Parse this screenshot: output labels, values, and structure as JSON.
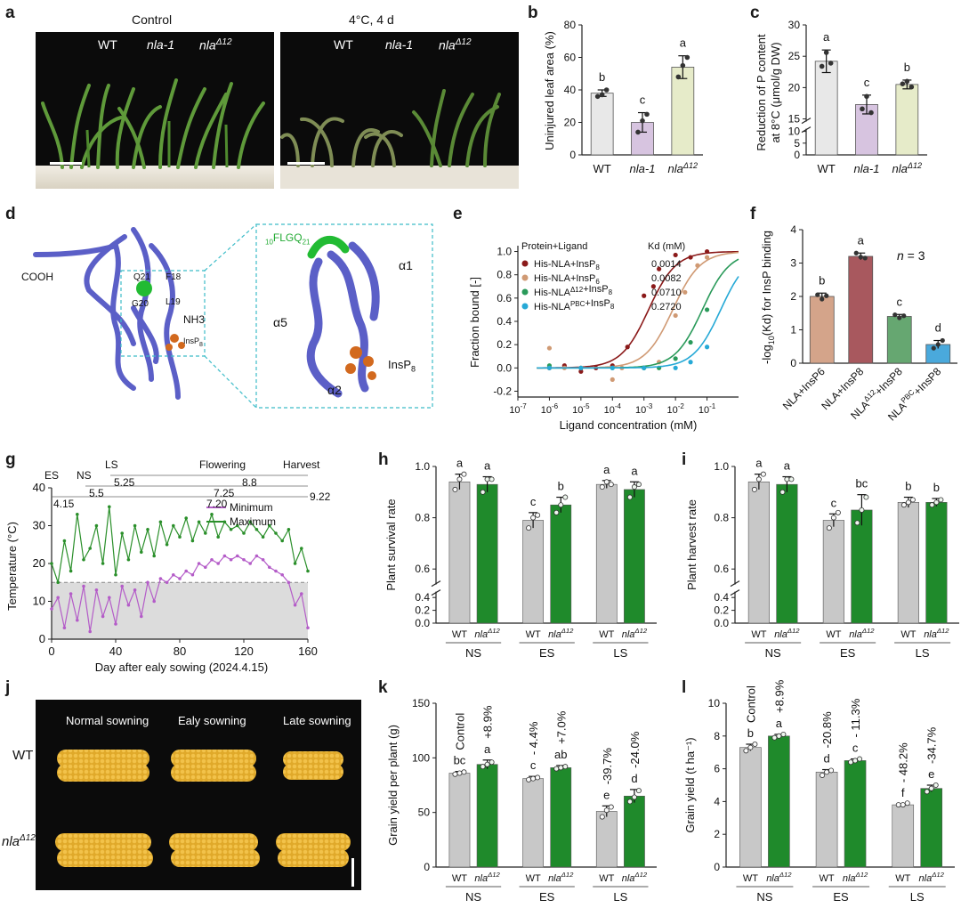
{
  "letters": {
    "a": "a",
    "b": "b",
    "c": "c",
    "d": "d",
    "e": "e",
    "f": "f",
    "g": "g",
    "h": "h",
    "i": "i",
    "j": "j",
    "k": "k",
    "l": "l"
  },
  "panel_a": {
    "control_title": "Control",
    "cold_title": "4°C, 4 d",
    "label_wt": "WT",
    "label_nla1": "nla-1",
    "label_nla12_base": "nla",
    "label_nla12_sup": "Δ12"
  },
  "panel_d": {
    "cooh": "COOH",
    "q21": "Q21",
    "f18": "F18",
    "g20": "G20",
    "l19": "L19",
    "nh3": "NH3",
    "insp_small": "InsP",
    "insp_small_sub": "8",
    "motif_pre": "10",
    "motif": "FLGQ",
    "motif_post": "21",
    "a1": "α1",
    "a2": "α2",
    "a5": "α5",
    "insp8": "InsP",
    "insp8_sub": "8"
  },
  "panel_j": {
    "normal": "Normal sowning",
    "early": "Ealy sowning",
    "late": "Late sowning",
    "wt": "WT",
    "nla_base": "nla",
    "nla_sup": "Δ12"
  },
  "chart_data": [
    {
      "panel": "b",
      "type": "bar",
      "ylabel": "Uninjured leaf area (%)",
      "categories": [
        "WT",
        "nla-1",
        "nla^Δ12"
      ],
      "values": [
        38,
        20,
        54
      ],
      "errors": [
        2,
        6,
        7
      ],
      "points": [
        [
          36,
          37,
          40
        ],
        [
          14,
          21,
          25
        ],
        [
          48,
          55,
          60
        ]
      ],
      "letters": [
        "b",
        "c",
        "a"
      ],
      "colors": [
        "#e8e8e8",
        "#d7c4e0",
        "#e6ebc9"
      ],
      "ylim": [
        0,
        80
      ],
      "yticks": [
        0,
        20,
        40,
        60,
        80
      ]
    },
    {
      "panel": "c",
      "type": "bar",
      "ylabel": "Reduction of P content at 8°C (μmol/g DW)",
      "categories": [
        "WT",
        "nla-1",
        "nla^Δ12"
      ],
      "values": [
        24.2,
        17.3,
        20.5
      ],
      "errors": [
        1.8,
        1.5,
        0.7
      ],
      "points": [
        [
          23.4,
          25.6,
          23.9
        ],
        [
          16.6,
          18.6,
          16.0
        ],
        [
          20.6,
          21.0,
          20.1
        ]
      ],
      "letters": [
        "a",
        "c",
        "b"
      ],
      "colors": [
        "#e8e8e8",
        "#d7c4e0",
        "#e6ebc9"
      ],
      "yticks": [
        0,
        5,
        10,
        15,
        20,
        25,
        30
      ],
      "axis_break": [
        10,
        15
      ]
    },
    {
      "panel": "e",
      "type": "scatter",
      "title": "Protein+Ligand",
      "kd_header": "Kd (mM)",
      "xlabel": "Ligand concentration (mM)",
      "ylabel": "Fraction bound [-]",
      "xscale": "log",
      "xlim": [
        1e-07,
        1
      ],
      "xticks": [
        "10^-7",
        "10^-6",
        "10^-5",
        "10^-4",
        "10^-3",
        "10^-2",
        "10^-1"
      ],
      "ylim": [
        -0.25,
        1.05
      ],
      "yticks": [
        -0.2,
        0.0,
        0.2,
        0.4,
        0.6,
        0.8,
        1.0
      ],
      "series": [
        {
          "name": "His-NLA+InsP8",
          "kd": "0.0014",
          "kd_value": 0.0014,
          "color": "#8b1a1a",
          "x": [
            1e-06,
            3e-06,
            1e-05,
            3e-05,
            0.0001,
            0.0003,
            0.001,
            0.002,
            0.003,
            0.01,
            0.03,
            0.1
          ],
          "y": [
            0.0,
            0.02,
            -0.03,
            0.0,
            0.02,
            0.18,
            0.62,
            0.7,
            0.85,
            0.97,
            0.95,
            1.0
          ]
        },
        {
          "name": "His-NLA+InsP6",
          "kd": "0.0082",
          "kd_value": 0.0082,
          "color": "#d09a74",
          "x": [
            1e-06,
            3e-06,
            1e-05,
            0.0001,
            0.0002,
            0.001,
            0.003,
            0.01,
            0.02,
            0.05,
            0.1
          ],
          "y": [
            0.17,
            0.0,
            0.0,
            -0.1,
            0.0,
            0.0,
            0.05,
            0.45,
            0.65,
            0.88,
            0.95
          ]
        },
        {
          "name": "His-NLAΔ12+InsP8",
          "kd": "0.0710",
          "kd_value": 0.071,
          "color": "#2a9a5a",
          "x": [
            1e-06,
            1e-05,
            0.0001,
            0.001,
            0.003,
            0.01,
            0.03,
            0.1
          ],
          "y": [
            0.02,
            0.0,
            0.0,
            0.0,
            0.0,
            0.08,
            0.22,
            0.5
          ]
        },
        {
          "name": "His-NLAPBC+InsP8",
          "kd": "0.2720",
          "kd_value": 0.272,
          "color": "#26a9d6",
          "x": [
            1e-06,
            1e-05,
            0.0001,
            0.001,
            0.01,
            0.03,
            0.1
          ],
          "y": [
            0.0,
            0.0,
            0.0,
            0.0,
            0.0,
            0.05,
            0.18
          ]
        }
      ]
    },
    {
      "panel": "f",
      "type": "bar",
      "ylabel": "-log10(Kd) for InsP binding",
      "annotation": "n = 3",
      "categories": [
        "NLA+InsP6",
        "NLA+InsP8",
        "NLA^Δ12+InsP8",
        "NLA^PBC+InsP8"
      ],
      "values": [
        2.0,
        3.2,
        1.4,
        0.56
      ],
      "errors": [
        0.1,
        0.1,
        0.06,
        0.12
      ],
      "points": [
        [
          2.05,
          1.92,
          2.02
        ],
        [
          3.3,
          3.18,
          3.15
        ],
        [
          1.45,
          1.36,
          1.42
        ],
        [
          0.45,
          0.56,
          0.68
        ]
      ],
      "letters": [
        "b",
        "a",
        "c",
        "d"
      ],
      "colors": [
        "#d4a48a",
        "#a8585e",
        "#66a771",
        "#4aa9dc"
      ],
      "ylim": [
        0,
        4
      ],
      "yticks": [
        0,
        1,
        2,
        3,
        4
      ]
    },
    {
      "panel": "g",
      "type": "line",
      "xlabel": "Day after ealy sowing (2024.4.15)",
      "ylabel": "Temperature (°C)",
      "xlim": [
        0,
        160
      ],
      "xticks": [
        0,
        40,
        80,
        120,
        160
      ],
      "ylim": [
        0,
        40
      ],
      "yticks": [
        0,
        10,
        20,
        30,
        40
      ],
      "threshold": 15,
      "stages": {
        "es": "ES",
        "ns": "NS",
        "ls": "LS",
        "flowering": "Flowering",
        "harvest": "Harvest"
      },
      "stage_dates": [
        "4.15",
        "5.5",
        "5.25",
        "7.20",
        "7.25",
        "8.8",
        "9.22"
      ],
      "series": [
        {
          "name": "Minimum",
          "color": "#b45cc8",
          "x": [
            0,
            4,
            8,
            12,
            16,
            20,
            24,
            28,
            32,
            36,
            40,
            44,
            48,
            52,
            56,
            60,
            64,
            68,
            72,
            76,
            80,
            84,
            88,
            92,
            96,
            100,
            104,
            108,
            112,
            116,
            120,
            124,
            128,
            132,
            136,
            140,
            144,
            148,
            152,
            156,
            160
          ],
          "y": [
            8,
            11,
            3,
            12,
            5,
            14,
            2,
            13,
            6,
            11,
            4,
            14,
            9,
            13,
            6,
            15,
            10,
            16,
            15,
            17,
            16,
            18,
            17,
            20,
            19,
            21,
            20,
            22,
            21,
            22,
            21,
            20,
            22,
            21,
            19,
            18,
            17,
            15,
            9,
            12,
            3
          ]
        },
        {
          "name": "Maximum",
          "color": "#2a8f2a",
          "x": [
            0,
            4,
            8,
            12,
            16,
            20,
            24,
            28,
            32,
            36,
            40,
            44,
            48,
            52,
            56,
            60,
            64,
            68,
            72,
            76,
            80,
            84,
            88,
            92,
            96,
            100,
            104,
            108,
            112,
            116,
            120,
            124,
            128,
            132,
            136,
            140,
            144,
            148,
            152,
            156,
            160
          ],
          "y": [
            20,
            15,
            26,
            18,
            33,
            21,
            24,
            30,
            20,
            35,
            17,
            28,
            21,
            30,
            23,
            29,
            22,
            31,
            25,
            30,
            27,
            32,
            26,
            31,
            28,
            33,
            27,
            31,
            29,
            30,
            28,
            31,
            29,
            27,
            30,
            28,
            26,
            29,
            20,
            24,
            18
          ]
        }
      ]
    },
    {
      "panel": "h",
      "type": "bar",
      "ylabel": "Plant survival rate",
      "groups": [
        "NS",
        "ES",
        "LS"
      ],
      "categories": [
        "WT",
        "nla^Δ12"
      ],
      "values": [
        [
          0.94,
          0.93
        ],
        [
          0.79,
          0.85
        ],
        [
          0.93,
          0.91
        ]
      ],
      "errors": [
        [
          0.03,
          0.03
        ],
        [
          0.03,
          0.03
        ],
        [
          0.015,
          0.03
        ]
      ],
      "points": [
        [
          [
            0.91,
            0.95,
            0.97
          ],
          [
            0.9,
            0.95,
            0.95
          ]
        ],
        [
          [
            0.76,
            0.8,
            0.81
          ],
          [
            0.82,
            0.85,
            0.88
          ]
        ],
        [
          [
            0.92,
            0.94,
            0.93
          ],
          [
            0.88,
            0.92,
            0.93
          ]
        ]
      ],
      "letters": [
        [
          "a",
          "a"
        ],
        [
          "c",
          "b"
        ],
        [
          "a",
          "a"
        ]
      ],
      "colors": [
        "#c8c8c8",
        "#1f8a2b"
      ],
      "yticks": [
        0.0,
        0.2,
        0.4,
        0.6,
        0.8,
        1.0
      ],
      "axis_break": [
        0.45,
        0.55
      ]
    },
    {
      "panel": "i",
      "type": "bar",
      "ylabel": "Plant harvest rate",
      "groups": [
        "NS",
        "ES",
        "LS"
      ],
      "categories": [
        "WT",
        "nla^Δ12"
      ],
      "values": [
        [
          0.94,
          0.93
        ],
        [
          0.79,
          0.83
        ],
        [
          0.86,
          0.86
        ]
      ],
      "errors": [
        [
          0.03,
          0.03
        ],
        [
          0.025,
          0.06
        ],
        [
          0.02,
          0.015
        ]
      ],
      "points": [
        [
          [
            0.91,
            0.95,
            0.97
          ],
          [
            0.9,
            0.95,
            0.95
          ]
        ],
        [
          [
            0.76,
            0.8,
            0.82
          ],
          [
            0.78,
            0.83,
            0.88
          ]
        ],
        [
          [
            0.85,
            0.86,
            0.87
          ],
          [
            0.85,
            0.86,
            0.87
          ]
        ]
      ],
      "letters": [
        [
          "a",
          "a"
        ],
        [
          "c",
          "bc"
        ],
        [
          "b",
          "b"
        ]
      ],
      "colors": [
        "#c8c8c8",
        "#1f8a2b"
      ],
      "yticks": [
        0.0,
        0.2,
        0.4,
        0.6,
        0.8,
        1.0
      ],
      "axis_break": [
        0.45,
        0.55
      ]
    },
    {
      "panel": "k",
      "type": "bar",
      "ylabel": "Grain yield per plant (g)",
      "groups": [
        "NS",
        "ES",
        "LS"
      ],
      "categories": [
        "WT",
        "nla^Δ12"
      ],
      "values": [
        [
          86,
          94
        ],
        [
          81,
          91
        ],
        [
          51,
          65
        ]
      ],
      "errors": [
        [
          1.5,
          4
        ],
        [
          2,
          2
        ],
        [
          5,
          6
        ]
      ],
      "points": [
        [
          [
            85,
            86,
            87
          ],
          [
            92,
            94,
            96
          ]
        ],
        [
          [
            80,
            81,
            82
          ],
          [
            90,
            91,
            92
          ]
        ],
        [
          [
            46,
            52,
            55
          ],
          [
            60,
            64,
            70
          ]
        ]
      ],
      "letters": [
        [
          "bc",
          "a"
        ],
        [
          "c",
          "ab"
        ],
        [
          "e",
          "d"
        ]
      ],
      "pct": [
        [
          "Control",
          "+8.9%"
        ],
        [
          "- 4.4%",
          "+7.0%"
        ],
        [
          "-39.7%",
          "-24.0%"
        ]
      ],
      "colors": [
        "#c8c8c8",
        "#1f8a2b"
      ],
      "ylim": [
        0,
        150
      ],
      "yticks": [
        0,
        50,
        100,
        150
      ]
    },
    {
      "panel": "l",
      "type": "bar",
      "ylabel": "Grain yield (t ha⁻¹)",
      "groups": [
        "NS",
        "ES",
        "LS"
      ],
      "categories": [
        "WT",
        "nla^Δ12"
      ],
      "values": [
        [
          7.3,
          8.0
        ],
        [
          5.8,
          6.5
        ],
        [
          3.8,
          4.8
        ]
      ],
      "errors": [
        [
          0.2,
          0.1
        ],
        [
          0.15,
          0.1
        ],
        [
          0.05,
          0.2
        ]
      ],
      "points": [
        [
          [
            7.1,
            7.3,
            7.5
          ],
          [
            7.9,
            8.0,
            8.1
          ]
        ],
        [
          [
            5.6,
            5.8,
            5.9
          ],
          [
            6.4,
            6.5,
            6.6
          ]
        ],
        [
          [
            3.8,
            3.8,
            3.9
          ],
          [
            4.6,
            4.8,
            5.0
          ]
        ]
      ],
      "letters": [
        [
          "b",
          "a"
        ],
        [
          "d",
          "c"
        ],
        [
          "f",
          "e"
        ]
      ],
      "pct": [
        [
          "Control",
          "+8.9%"
        ],
        [
          "-20.8%",
          "- 11.3%"
        ],
        [
          "- 48.2%",
          "-34.7%"
        ]
      ],
      "colors": [
        "#c8c8c8",
        "#1f8a2b"
      ],
      "ylim": [
        0,
        10
      ],
      "yticks": [
        0,
        2,
        4,
        6,
        8,
        10
      ]
    }
  ]
}
